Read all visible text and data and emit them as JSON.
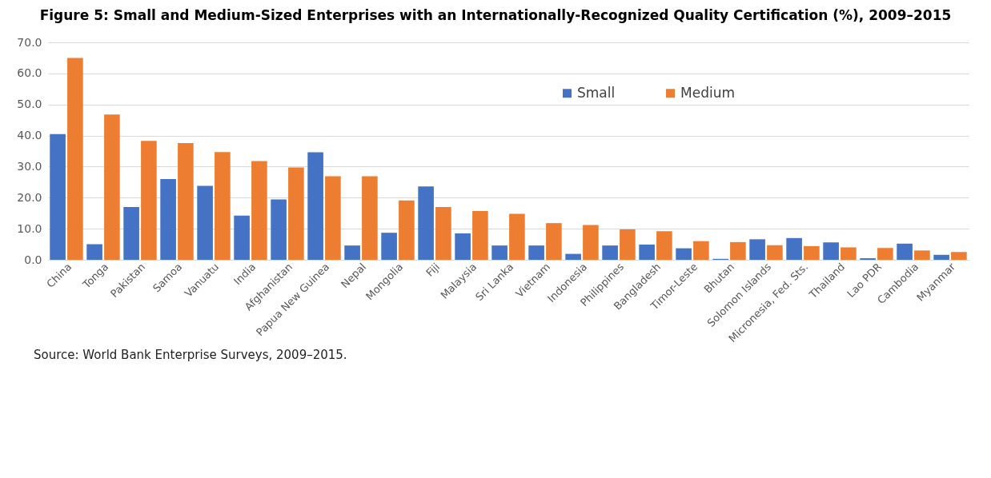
{
  "chart_data": {
    "type": "bar",
    "title": "Figure 5: Small and Medium-Sized Enterprises with an Internationally-Recognized Quality Certification (%), 2009–2015",
    "categories": [
      "China",
      "Tonga",
      "Pakistan",
      "Samoa",
      "Vanuatu",
      "India",
      "Afghanistan",
      "Papua New Guinea",
      "Nepal",
      "Mongolia",
      "Fiji",
      "Malaysia",
      "Sri Lanka",
      "Vietnam",
      "Indonesia",
      "Philippines",
      "Bangladesh",
      "Timor-Leste",
      "Bhutan",
      "Solomon Islands",
      "Micronesia, Fed. Sts.",
      "Thailand",
      "Lao PDR",
      "Cambodia",
      "Myanmar"
    ],
    "series": [
      {
        "name": "Small",
        "color": "#4472c4",
        "values": [
          40.5,
          5.0,
          17.0,
          26.0,
          23.8,
          14.2,
          19.4,
          34.6,
          4.6,
          8.7,
          23.6,
          8.5,
          4.6,
          4.6,
          1.9,
          4.6,
          4.9,
          3.7,
          0.3,
          6.6,
          7.0,
          5.6,
          0.5,
          5.2,
          1.6
        ]
      },
      {
        "name": "Medium",
        "color": "#ed7d31",
        "values": [
          65.0,
          46.8,
          38.3,
          37.6,
          34.7,
          31.8,
          29.7,
          26.9,
          26.9,
          19.1,
          17.0,
          15.7,
          14.8,
          11.8,
          11.2,
          9.8,
          9.2,
          6.0,
          5.7,
          4.7,
          4.4,
          4.0,
          3.8,
          3.0,
          2.5
        ]
      }
    ],
    "ylim": [
      0,
      70
    ],
    "yticks": [
      {
        "value": 0,
        "label": "0.0"
      },
      {
        "value": 10,
        "label": "10.0"
      },
      {
        "value": 20,
        "label": "20.0"
      },
      {
        "value": 30,
        "label": "30.0"
      },
      {
        "value": 40,
        "label": "40.0"
      },
      {
        "value": 50,
        "label": "50.0"
      },
      {
        "value": 60,
        "label": "60.0"
      },
      {
        "value": 70,
        "label": "70.0"
      }
    ],
    "grid": "y",
    "legend": "top right",
    "annotations": [
      "Source: World Bank Enterprise Surveys, 2009–2015."
    ]
  }
}
